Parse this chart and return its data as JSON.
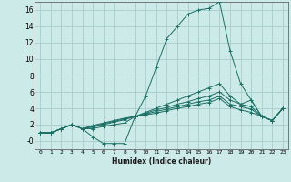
{
  "xlabel": "Humidex (Indice chaleur)",
  "bg_color": "#cceae8",
  "grid_color": "#aacccc",
  "line_color": "#1a6e64",
  "xlim": [
    -0.5,
    23.5
  ],
  "ylim": [
    -1.0,
    17.0
  ],
  "yticks": [
    0,
    2,
    4,
    6,
    8,
    10,
    12,
    14,
    16
  ],
  "ytick_labels": [
    "-0",
    "2",
    "4",
    "6",
    "8",
    "10",
    "12",
    "14",
    "16"
  ],
  "xticks": [
    0,
    1,
    2,
    3,
    4,
    5,
    6,
    7,
    8,
    9,
    10,
    11,
    12,
    13,
    14,
    15,
    16,
    17,
    18,
    19,
    20,
    21,
    22,
    23
  ],
  "series": [
    [
      1.0,
      1.0,
      1.5,
      2.0,
      1.5,
      0.5,
      -0.3,
      -0.3,
      -0.3,
      3.0,
      5.5,
      9.0,
      12.5,
      14.0,
      15.5,
      16.0,
      16.2,
      17.0,
      11.0,
      7.0,
      5.0,
      3.0,
      2.5,
      4.0
    ],
    [
      1.0,
      1.0,
      1.5,
      2.0,
      1.5,
      1.5,
      1.8,
      2.0,
      2.2,
      3.0,
      3.5,
      4.0,
      4.5,
      5.0,
      5.5,
      6.0,
      6.5,
      7.0,
      5.5,
      4.5,
      5.0,
      3.0,
      2.5,
      4.0
    ],
    [
      1.0,
      1.0,
      1.5,
      2.0,
      1.5,
      1.7,
      2.0,
      2.3,
      2.6,
      3.0,
      3.4,
      3.8,
      4.1,
      4.5,
      4.8,
      5.2,
      5.5,
      6.0,
      5.0,
      4.5,
      4.2,
      3.0,
      2.5,
      4.0
    ],
    [
      1.0,
      1.0,
      1.5,
      2.0,
      1.5,
      1.8,
      2.1,
      2.4,
      2.7,
      3.0,
      3.3,
      3.6,
      3.9,
      4.2,
      4.5,
      4.8,
      5.0,
      5.5,
      4.5,
      4.2,
      3.9,
      3.0,
      2.5,
      4.0
    ],
    [
      1.0,
      1.0,
      1.5,
      2.0,
      1.5,
      1.9,
      2.2,
      2.5,
      2.8,
      3.0,
      3.2,
      3.4,
      3.7,
      4.0,
      4.2,
      4.5,
      4.7,
      5.2,
      4.2,
      3.8,
      3.5,
      3.0,
      2.5,
      4.0
    ]
  ]
}
